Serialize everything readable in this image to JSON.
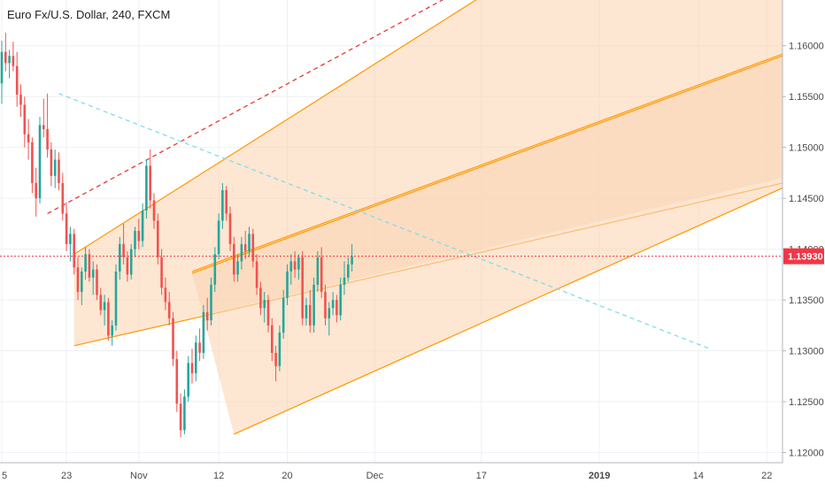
{
  "chart_data": {
    "type": "candlestick",
    "title": {
      "symbol": "Euro Fx/U.S. Dollar",
      "interval": "240",
      "exchange": "FXCM"
    },
    "last_price": {
      "value": 1.1393,
      "label": "1.13930",
      "color": "#f23645"
    },
    "colors": {
      "up": "#26a69a",
      "down": "#ef5350",
      "channel": "#ff9800",
      "channel_fill": "#fbd6b4",
      "dashed_red": "#e53935",
      "dashed_cyan": "#80deea",
      "grid": "#eef0f3",
      "axis_text": "#4a4a4a"
    },
    "y_axis": {
      "min": 1.119,
      "max": 1.1645,
      "ticks": [
        "1.12000",
        "1.12500",
        "1.13000",
        "1.13500",
        "1.14000",
        "1.14500",
        "1.15000",
        "1.15500",
        "1.16000"
      ],
      "tick_values": [
        1.12,
        1.125,
        1.13,
        1.135,
        1.14,
        1.145,
        1.15,
        1.155,
        1.16
      ]
    },
    "x_axis": {
      "ticks": [
        "5",
        "23",
        "Nov",
        "12",
        "20",
        "Dec",
        "17",
        "2019",
        "14",
        "22"
      ],
      "tick_positions": [
        0,
        17,
        36,
        57,
        75,
        98,
        126,
        157,
        183,
        201
      ],
      "bold": [
        "2019"
      ],
      "range": [
        0,
        206
      ]
    },
    "grid": true,
    "candles": [
      [
        1.1563,
        1.1605,
        1.1543,
        1.1594
      ],
      [
        1.1594,
        1.1613,
        1.1575,
        1.1583
      ],
      [
        1.1583,
        1.1596,
        1.1568,
        1.159
      ],
      [
        1.159,
        1.1604,
        1.1575,
        1.158
      ],
      [
        1.158,
        1.1594,
        1.154,
        1.1552
      ],
      [
        1.1552,
        1.1562,
        1.153,
        1.1542
      ],
      [
        1.1542,
        1.155,
        1.15,
        1.1513
      ],
      [
        1.1513,
        1.1528,
        1.1488,
        1.1505
      ],
      [
        1.1505,
        1.151,
        1.1455,
        1.1465
      ],
      [
        1.1465,
        1.148,
        1.1432,
        1.145
      ],
      [
        1.145,
        1.153,
        1.1445,
        1.1522
      ],
      [
        1.1522,
        1.1548,
        1.151,
        1.1518
      ],
      [
        1.1518,
        1.1553,
        1.149,
        1.1498
      ],
      [
        1.1498,
        1.1505,
        1.1462,
        1.1472
      ],
      [
        1.1472,
        1.1498,
        1.146,
        1.1488
      ],
      [
        1.1488,
        1.1495,
        1.1458,
        1.1465
      ],
      [
        1.1465,
        1.1475,
        1.1428,
        1.1435
      ],
      [
        1.1435,
        1.1446,
        1.1398,
        1.1405
      ],
      [
        1.1405,
        1.1422,
        1.1388,
        1.1415
      ],
      [
        1.1415,
        1.142,
        1.1375,
        1.1382
      ],
      [
        1.1382,
        1.1392,
        1.135,
        1.1358
      ],
      [
        1.1358,
        1.1382,
        1.1345,
        1.1378
      ],
      [
        1.1378,
        1.1402,
        1.137,
        1.1395
      ],
      [
        1.1395,
        1.14,
        1.1368,
        1.1372
      ],
      [
        1.1372,
        1.1388,
        1.1355,
        1.138
      ],
      [
        1.138,
        1.1385,
        1.135,
        1.1355
      ],
      [
        1.1355,
        1.1362,
        1.1335,
        1.134
      ],
      [
        1.134,
        1.1355,
        1.1325,
        1.1348
      ],
      [
        1.1348,
        1.1352,
        1.131,
        1.1315
      ],
      [
        1.1315,
        1.133,
        1.1305,
        1.1325
      ],
      [
        1.1325,
        1.1385,
        1.132,
        1.1378
      ],
      [
        1.1378,
        1.1412,
        1.137,
        1.1405
      ],
      [
        1.1405,
        1.1425,
        1.1385,
        1.1392
      ],
      [
        1.1392,
        1.1398,
        1.1368,
        1.1375
      ],
      [
        1.1375,
        1.1405,
        1.137,
        1.14
      ],
      [
        1.14,
        1.1422,
        1.1392,
        1.1418
      ],
      [
        1.1418,
        1.143,
        1.14,
        1.1408
      ],
      [
        1.1408,
        1.1445,
        1.1402,
        1.1438
      ],
      [
        1.1438,
        1.1488,
        1.143,
        1.1482
      ],
      [
        1.1482,
        1.1498,
        1.144,
        1.1448
      ],
      [
        1.1448,
        1.1455,
        1.142,
        1.1428
      ],
      [
        1.1428,
        1.1435,
        1.1385,
        1.1392
      ],
      [
        1.1392,
        1.14,
        1.1355,
        1.1362
      ],
      [
        1.1362,
        1.1372,
        1.134,
        1.1348
      ],
      [
        1.1348,
        1.1358,
        1.1325,
        1.1332
      ],
      [
        1.1332,
        1.1338,
        1.1285,
        1.1292
      ],
      [
        1.1292,
        1.13,
        1.124,
        1.1248
      ],
      [
        1.1248,
        1.1258,
        1.1215,
        1.1222
      ],
      [
        1.1222,
        1.1262,
        1.1218,
        1.1255
      ],
      [
        1.1255,
        1.1295,
        1.125,
        1.1288
      ],
      [
        1.1288,
        1.1302,
        1.1268,
        1.1278
      ],
      [
        1.1278,
        1.1315,
        1.127,
        1.1308
      ],
      [
        1.1308,
        1.1322,
        1.129,
        1.1298
      ],
      [
        1.1298,
        1.1345,
        1.1292,
        1.1338
      ],
      [
        1.1338,
        1.1352,
        1.132,
        1.133
      ],
      [
        1.133,
        1.1372,
        1.1325,
        1.1365
      ],
      [
        1.1365,
        1.1402,
        1.1358,
        1.1395
      ],
      [
        1.1395,
        1.1435,
        1.139,
        1.1428
      ],
      [
        1.1428,
        1.1465,
        1.142,
        1.1458
      ],
      [
        1.1458,
        1.1462,
        1.1428,
        1.1435
      ],
      [
        1.1435,
        1.1442,
        1.1398,
        1.1405
      ],
      [
        1.1405,
        1.1412,
        1.1368,
        1.1375
      ],
      [
        1.1375,
        1.1395,
        1.1368,
        1.1388
      ],
      [
        1.1388,
        1.1412,
        1.138,
        1.1405
      ],
      [
        1.1405,
        1.1418,
        1.139,
        1.1398
      ],
      [
        1.1398,
        1.1422,
        1.1392,
        1.1415
      ],
      [
        1.1415,
        1.142,
        1.1382,
        1.1388
      ],
      [
        1.1388,
        1.1395,
        1.1355,
        1.1362
      ],
      [
        1.1362,
        1.1368,
        1.1335,
        1.1342
      ],
      [
        1.1342,
        1.1358,
        1.1328,
        1.135
      ],
      [
        1.135,
        1.1355,
        1.1318,
        1.1325
      ],
      [
        1.1325,
        1.1332,
        1.129,
        1.1298
      ],
      [
        1.1298,
        1.1305,
        1.127,
        1.1285
      ],
      [
        1.1285,
        1.1325,
        1.128,
        1.1318
      ],
      [
        1.1318,
        1.136,
        1.1312,
        1.1352
      ],
      [
        1.1352,
        1.1385,
        1.1345,
        1.1378
      ],
      [
        1.1378,
        1.1395,
        1.1365,
        1.1388
      ],
      [
        1.1388,
        1.1398,
        1.1372,
        1.138
      ],
      [
        1.138,
        1.1395,
        1.137,
        1.1392
      ],
      [
        1.1392,
        1.1398,
        1.1325,
        1.1332
      ],
      [
        1.1332,
        1.1352,
        1.1325,
        1.1345
      ],
      [
        1.1345,
        1.136,
        1.1318,
        1.1325
      ],
      [
        1.1325,
        1.1372,
        1.1318,
        1.1365
      ],
      [
        1.1365,
        1.1398,
        1.1358,
        1.1392
      ],
      [
        1.1392,
        1.1402,
        1.1352,
        1.1358
      ],
      [
        1.1358,
        1.1365,
        1.1325,
        1.1332
      ],
      [
        1.1332,
        1.1348,
        1.1315,
        1.1342
      ],
      [
        1.1342,
        1.1358,
        1.1335,
        1.135
      ],
      [
        1.135,
        1.1355,
        1.1328,
        1.1335
      ],
      [
        1.1335,
        1.1372,
        1.133,
        1.1365
      ],
      [
        1.1365,
        1.1388,
        1.1355,
        1.1372
      ],
      [
        1.1372,
        1.1392,
        1.1368,
        1.1385
      ],
      [
        1.1385,
        1.1405,
        1.1378,
        1.1393
      ]
    ],
    "channel": {
      "upper_line": [
        [
          19,
          1.1395
        ],
        [
          152,
          1.171
        ]
      ],
      "lower_line": [
        [
          19,
          1.1305
        ],
        [
          211,
          1.147
        ]
      ],
      "median_pair": [
        [
          50,
          1.1378
        ],
        [
          211,
          1.16
        ],
        [
          211,
          1.1592
        ],
        [
          50,
          1.137
        ]
      ],
      "inner_lower": [
        [
          50,
          1.1375
        ],
        [
          211,
          1.1592
        ]
      ],
      "lower_base": [
        [
          61,
          1.1218
        ],
        [
          211,
          1.147
        ]
      ]
    },
    "dashed_red": [
      [
        12,
        1.1435
      ],
      [
        138,
        1.169
      ]
    ],
    "dashed_cyan": [
      [
        15,
        1.1553
      ],
      [
        186,
        1.1302
      ]
    ]
  }
}
